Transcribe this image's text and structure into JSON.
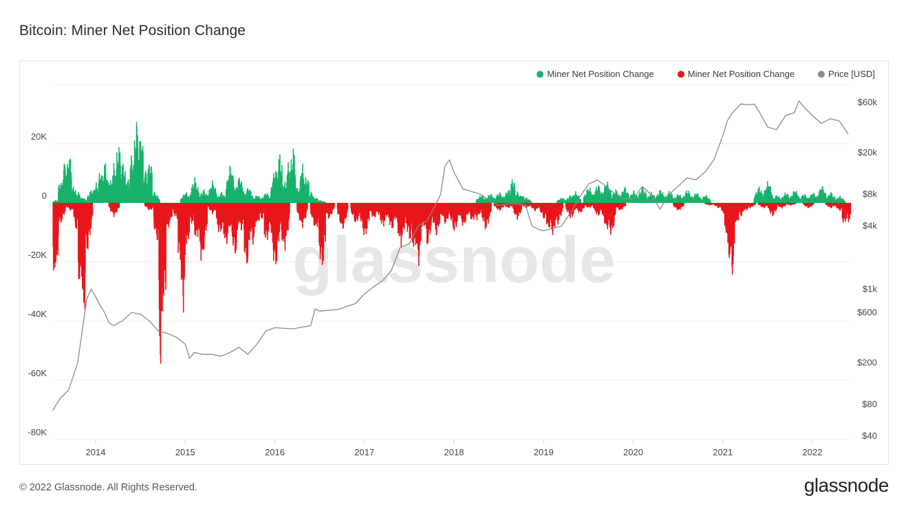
{
  "title": "Bitcoin: Miner Net Position Change",
  "legend": [
    {
      "label": "Miner Net Position Change",
      "color": "#18b26b"
    },
    {
      "label": "Miner Net Position Change",
      "color": "#e8161b"
    },
    {
      "label": "Price [USD]",
      "color": "#8a8a8a"
    }
  ],
  "watermark": "glassnode",
  "footer": {
    "copyright": "© 2022 Glassnode. All Rights Reserved.",
    "brand": "glassnode"
  },
  "chart_data": {
    "type": "bar",
    "x_ticks": [
      "2014",
      "2015",
      "2016",
      "2017",
      "2018",
      "2019",
      "2020",
      "2021",
      "2022"
    ],
    "y_left_ticks": [
      "20K",
      "0",
      "-20K",
      "-40K",
      "-60K",
      "-80K"
    ],
    "y_right_ticks": [
      "$60k",
      "$20k",
      "$8k",
      "$4k",
      "$1k",
      "$600",
      "$200",
      "$80",
      "$40"
    ],
    "x_range": [
      2013.52,
      2022.42
    ],
    "y_left_range": [
      -80000,
      40000
    ],
    "y_right_scale": "log",
    "grid": true,
    "legend_position": "top-right",
    "series": [
      {
        "name": "Miner Net Position Change",
        "color": "#18b26b",
        "x": [
          2013.55,
          2013.6,
          2013.65,
          2013.7,
          2013.75,
          2013.8,
          2013.85,
          2013.95,
          2014.0,
          2014.05,
          2014.1,
          2014.15,
          2014.2,
          2014.25,
          2014.3,
          2014.35,
          2014.4,
          2014.45,
          2014.5,
          2014.55,
          2014.6,
          2014.65,
          2015.0,
          2015.1,
          2015.2,
          2015.3,
          2015.4,
          2015.5,
          2015.6,
          2015.7,
          2015.8,
          2015.9,
          2016.0,
          2016.05,
          2016.1,
          2016.15,
          2016.2,
          2016.25,
          2016.3,
          2016.35,
          2016.4,
          2016.45,
          2016.5,
          2018.3,
          2018.4,
          2018.5,
          2018.6,
          2018.65,
          2018.7,
          2018.75,
          2018.8,
          2019.2,
          2019.3,
          2019.35,
          2019.5,
          2019.6,
          2019.7,
          2019.8,
          2019.9,
          2020.0,
          2020.1,
          2020.2,
          2020.3,
          2020.4,
          2020.5,
          2020.6,
          2020.7,
          2020.8,
          2021.4,
          2021.5,
          2021.6,
          2021.7,
          2021.8,
          2021.9,
          2022.0,
          2022.1,
          2022.2,
          2022.3
        ],
        "values": [
          1000,
          8000,
          15000,
          18000,
          6000,
          4000,
          2000,
          5000,
          7000,
          12000,
          15000,
          9000,
          14000,
          22000,
          15000,
          9000,
          18000,
          30000,
          26000,
          12000,
          16000,
          4000,
          4000,
          9000,
          5000,
          8000,
          4000,
          14000,
          10000,
          6000,
          3000,
          4000,
          13000,
          18000,
          8000,
          15000,
          20000,
          6000,
          14000,
          10000,
          4000,
          2000,
          1000,
          3000,
          3500,
          4000,
          5000,
          9000,
          4000,
          3000,
          2000,
          2000,
          3000,
          4000,
          6000,
          7000,
          8000,
          5000,
          6000,
          4500,
          6000,
          4000,
          5000,
          4500,
          3500,
          5000,
          4000,
          3000,
          6000,
          8000,
          3000,
          4000,
          5000,
          3500,
          4000,
          6500,
          4000,
          2500
        ]
      },
      {
        "name": "Miner Net Position Change",
        "color": "#e8161b",
        "x": [
          2013.53,
          2013.56,
          2013.6,
          2013.72,
          2013.78,
          2013.82,
          2013.86,
          2013.9,
          2014.2,
          2014.6,
          2014.68,
          2014.72,
          2014.76,
          2014.8,
          2014.9,
          2014.93,
          2014.97,
          2015.02,
          2015.06,
          2015.12,
          2015.18,
          2015.3,
          2015.38,
          2015.45,
          2015.55,
          2015.62,
          2015.68,
          2015.75,
          2015.8,
          2015.85,
          2015.9,
          2016.0,
          2016.1,
          2016.3,
          2016.45,
          2016.52,
          2016.6,
          2016.75,
          2016.9,
          2017.0,
          2017.1,
          2017.2,
          2017.3,
          2017.4,
          2017.5,
          2017.55,
          2017.6,
          2017.65,
          2017.7,
          2017.8,
          2017.9,
          2018.0,
          2018.1,
          2018.2,
          2018.25,
          2018.35,
          2018.5,
          2018.6,
          2018.7,
          2018.8,
          2018.9,
          2019.0,
          2019.05,
          2019.1,
          2019.15,
          2019.3,
          2019.4,
          2019.5,
          2019.6,
          2019.7,
          2019.75,
          2019.85,
          2020.5,
          2020.85,
          2020.95,
          2021.0,
          2021.03,
          2021.06,
          2021.1,
          2021.15,
          2021.2,
          2021.25,
          2021.3,
          2021.45,
          2021.55,
          2021.65,
          2021.75,
          2021.95,
          2022.2,
          2022.3,
          2022.35,
          2022.4
        ],
        "values": [
          -30000,
          -24000,
          -8000,
          -3000,
          -10000,
          -32000,
          -43000,
          -18000,
          -5000,
          -3000,
          -14000,
          -59000,
          -38000,
          -10000,
          -6000,
          -22000,
          -39000,
          -16000,
          -8000,
          -14000,
          -22000,
          -4000,
          -12000,
          -16000,
          -20000,
          -10000,
          -24000,
          -15000,
          -8000,
          -6000,
          -15000,
          -25000,
          -18000,
          -9000,
          -10000,
          -25000,
          -6000,
          -10000,
          -8000,
          -13000,
          -6000,
          -9000,
          -10000,
          -16000,
          -14000,
          -18000,
          -22000,
          -10000,
          -16000,
          -12000,
          -8000,
          -11000,
          -9000,
          -7000,
          -6000,
          -10000,
          -3000,
          -2000,
          -6000,
          -2000,
          -3000,
          -6000,
          -10000,
          -12000,
          -8000,
          -6000,
          -4000,
          -2000,
          -5000,
          -10000,
          -12000,
          -3000,
          -3000,
          -1000,
          -2000,
          -4000,
          -12000,
          -22000,
          -26000,
          -8000,
          -5000,
          -3000,
          -2000,
          -2000,
          -5000,
          -2000,
          -1000,
          -2000,
          -2000,
          -3000,
          -8000,
          -7000
        ]
      },
      {
        "name": "Price [USD]",
        "color": "#8a8a8a",
        "axis": "right",
        "x": [
          2013.52,
          2013.6,
          2013.7,
          2013.8,
          2013.85,
          2013.9,
          2013.95,
          2014.0,
          2014.05,
          2014.1,
          2014.15,
          2014.2,
          2014.3,
          2014.4,
          2014.5,
          2014.6,
          2014.7,
          2014.8,
          2014.9,
          2015.0,
          2015.05,
          2015.1,
          2015.2,
          2015.3,
          2015.4,
          2015.5,
          2015.6,
          2015.7,
          2015.8,
          2015.9,
          2016.0,
          2016.2,
          2016.4,
          2016.45,
          2016.5,
          2016.7,
          2016.9,
          2017.0,
          2017.1,
          2017.2,
          2017.3,
          2017.4,
          2017.5,
          2017.6,
          2017.7,
          2017.8,
          2017.85,
          2017.9,
          2017.95,
          2018.0,
          2018.1,
          2018.2,
          2018.3,
          2018.4,
          2018.5,
          2018.6,
          2018.7,
          2018.8,
          2018.87,
          2018.95,
          2019.0,
          2019.1,
          2019.2,
          2019.3,
          2019.4,
          2019.5,
          2019.6,
          2019.7,
          2019.8,
          2019.9,
          2020.0,
          2020.1,
          2020.2,
          2020.3,
          2020.4,
          2020.5,
          2020.6,
          2020.7,
          2020.8,
          2020.9,
          2021.0,
          2021.05,
          2021.1,
          2021.2,
          2021.3,
          2021.35,
          2021.4,
          2021.5,
          2021.6,
          2021.7,
          2021.8,
          2021.85,
          2021.9,
          2022.0,
          2022.1,
          2022.2,
          2022.3,
          2022.4
        ],
        "values": [
          70,
          90,
          110,
          200,
          400,
          800,
          1000,
          850,
          700,
          600,
          480,
          450,
          500,
          600,
          580,
          500,
          400,
          380,
          350,
          300,
          220,
          250,
          240,
          240,
          230,
          250,
          280,
          240,
          300,
          400,
          430,
          420,
          450,
          650,
          620,
          640,
          730,
          900,
          1050,
          1200,
          1500,
          2500,
          2700,
          4000,
          4500,
          6500,
          8000,
          15000,
          17000,
          13000,
          9000,
          8500,
          8000,
          7000,
          6300,
          6500,
          6500,
          6300,
          4000,
          3700,
          3600,
          3800,
          4000,
          5300,
          7500,
          10000,
          11000,
          9500,
          8000,
          7300,
          7200,
          9500,
          8000,
          5800,
          8000,
          9500,
          11500,
          11000,
          13000,
          17000,
          29000,
          40000,
          47000,
          58000,
          57000,
          58000,
          50000,
          35000,
          33000,
          45000,
          48000,
          62000,
          55000,
          45000,
          38000,
          42000,
          40000,
          30000
        ]
      }
    ]
  }
}
